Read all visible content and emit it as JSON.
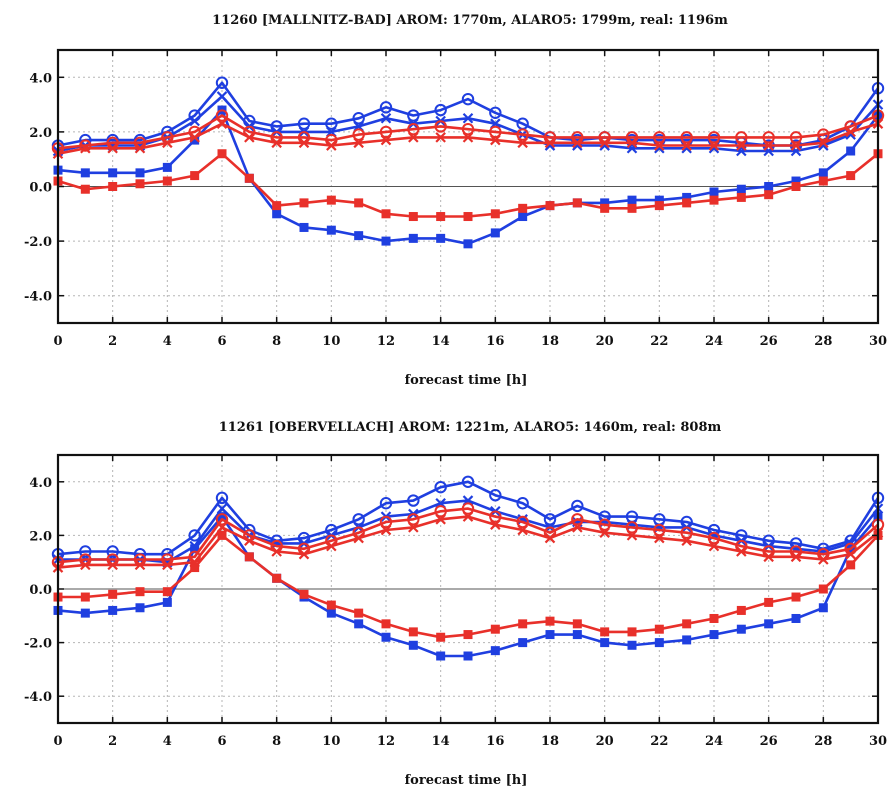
{
  "chart_data": [
    {
      "type": "line",
      "title": "11260 [MALLNITZ-BAD]  AROM: 1770m,  ALARO5: 1799m,  real: 1196m",
      "xlabel": "forecast time [h]",
      "ylabel": "",
      "xlim": [
        0,
        30
      ],
      "ylim": [
        -5,
        5
      ],
      "x_ticks": [
        0,
        2,
        4,
        6,
        8,
        10,
        12,
        14,
        16,
        18,
        20,
        22,
        24,
        26,
        28,
        30
      ],
      "y_ticks": [
        -4,
        -2,
        0,
        2,
        4
      ],
      "y_tick_labels": [
        "-4.0",
        "-2.0",
        "0.0",
        "2.0",
        "4.0"
      ],
      "grid": true,
      "x": [
        0,
        1,
        2,
        3,
        4,
        5,
        6,
        7,
        8,
        9,
        10,
        11,
        12,
        13,
        14,
        15,
        16,
        17,
        18,
        19,
        20,
        21,
        22,
        23,
        24,
        25,
        26,
        27,
        28,
        29,
        30
      ],
      "series": [
        {
          "color": "#1f3fe0",
          "marker": "circle",
          "values": [
            1.5,
            1.7,
            1.7,
            1.7,
            2.0,
            2.6,
            3.8,
            2.4,
            2.2,
            2.3,
            2.3,
            2.5,
            2.9,
            2.6,
            2.8,
            3.2,
            2.7,
            2.3,
            1.8,
            1.7,
            1.8,
            1.7,
            1.7,
            1.7,
            1.7,
            1.6,
            1.5,
            1.5,
            1.7,
            2.2,
            3.6
          ]
        },
        {
          "color": "#1f3fe0",
          "marker": "cross",
          "values": [
            1.3,
            1.5,
            1.5,
            1.5,
            1.8,
            2.4,
            3.3,
            2.2,
            2.0,
            2.0,
            2.0,
            2.2,
            2.5,
            2.3,
            2.4,
            2.5,
            2.3,
            1.9,
            1.5,
            1.5,
            1.5,
            1.4,
            1.4,
            1.4,
            1.4,
            1.3,
            1.3,
            1.3,
            1.5,
            1.9,
            3.0
          ]
        },
        {
          "color": "#1f3fe0",
          "marker": "square",
          "values": [
            0.6,
            0.5,
            0.5,
            0.5,
            0.7,
            1.7,
            2.8,
            0.3,
            -1.0,
            -1.5,
            -1.6,
            -1.8,
            -2.0,
            -1.9,
            -1.9,
            -2.1,
            -1.7,
            -1.1,
            -0.7,
            -0.6,
            -0.6,
            -0.5,
            -0.5,
            -0.4,
            -0.2,
            -0.1,
            0.0,
            0.2,
            0.5,
            1.3,
            2.6
          ]
        },
        {
          "color": "#e8302a",
          "marker": "circle",
          "values": [
            1.4,
            1.5,
            1.6,
            1.6,
            1.8,
            2.0,
            2.6,
            2.0,
            1.8,
            1.8,
            1.7,
            1.9,
            2.0,
            2.1,
            2.2,
            2.1,
            2.0,
            1.9,
            1.8,
            1.8,
            1.8,
            1.8,
            1.8,
            1.8,
            1.8,
            1.8,
            1.8,
            1.8,
            1.9,
            2.2,
            2.6
          ]
        },
        {
          "color": "#e8302a",
          "marker": "cross",
          "values": [
            1.2,
            1.4,
            1.4,
            1.4,
            1.6,
            1.8,
            2.3,
            1.8,
            1.6,
            1.6,
            1.5,
            1.6,
            1.7,
            1.8,
            1.8,
            1.8,
            1.7,
            1.6,
            1.6,
            1.6,
            1.6,
            1.6,
            1.5,
            1.5,
            1.5,
            1.5,
            1.5,
            1.5,
            1.6,
            2.0,
            2.3
          ]
        },
        {
          "color": "#e8302a",
          "marker": "square",
          "values": [
            0.2,
            -0.1,
            0.0,
            0.1,
            0.2,
            0.4,
            1.2,
            0.3,
            -0.7,
            -0.6,
            -0.5,
            -0.6,
            -1.0,
            -1.1,
            -1.1,
            -1.1,
            -1.0,
            -0.8,
            -0.7,
            -0.6,
            -0.8,
            -0.8,
            -0.7,
            -0.6,
            -0.5,
            -0.4,
            -0.3,
            0.0,
            0.2,
            0.4,
            1.2
          ]
        }
      ]
    },
    {
      "type": "line",
      "title": "11261 [OBERVELLACH]  AROM: 1221m,  ALARO5: 1460m,  real: 808m",
      "xlabel": "forecast time [h]",
      "ylabel": "",
      "xlim": [
        0,
        30
      ],
      "ylim": [
        -5,
        5
      ],
      "x_ticks": [
        0,
        2,
        4,
        6,
        8,
        10,
        12,
        14,
        16,
        18,
        20,
        22,
        24,
        26,
        28,
        30
      ],
      "y_ticks": [
        -4,
        -2,
        0,
        2,
        4
      ],
      "y_tick_labels": [
        "-4.0",
        "-2.0",
        "0.0",
        "2.0",
        "4.0"
      ],
      "grid": true,
      "x": [
        0,
        1,
        2,
        3,
        4,
        5,
        6,
        7,
        8,
        9,
        10,
        11,
        12,
        13,
        14,
        15,
        16,
        17,
        18,
        19,
        20,
        21,
        22,
        23,
        24,
        25,
        26,
        27,
        28,
        29,
        30
      ],
      "series": [
        {
          "color": "#1f3fe0",
          "marker": "circle",
          "values": [
            1.3,
            1.4,
            1.4,
            1.3,
            1.3,
            2.0,
            3.4,
            2.2,
            1.8,
            1.9,
            2.2,
            2.6,
            3.2,
            3.3,
            3.8,
            4.0,
            3.5,
            3.2,
            2.6,
            3.1,
            2.7,
            2.7,
            2.6,
            2.5,
            2.2,
            2.0,
            1.8,
            1.7,
            1.5,
            1.8,
            3.4
          ]
        },
        {
          "color": "#1f3fe0",
          "marker": "cross",
          "values": [
            1.1,
            1.1,
            1.1,
            1.1,
            1.0,
            1.6,
            3.0,
            2.0,
            1.7,
            1.7,
            2.0,
            2.3,
            2.7,
            2.8,
            3.2,
            3.3,
            2.9,
            2.6,
            2.3,
            2.5,
            2.5,
            2.4,
            2.3,
            2.3,
            2.0,
            1.8,
            1.6,
            1.5,
            1.4,
            1.7,
            3.0
          ]
        },
        {
          "color": "#1f3fe0",
          "marker": "square",
          "values": [
            -0.8,
            -0.9,
            -0.8,
            -0.7,
            -0.5,
            1.5,
            2.7,
            1.2,
            0.4,
            -0.3,
            -0.9,
            -1.3,
            -1.8,
            -2.1,
            -2.5,
            -2.5,
            -2.3,
            -2.0,
            -1.7,
            -1.7,
            -2.0,
            -2.1,
            -2.0,
            -1.9,
            -1.7,
            -1.5,
            -1.3,
            -1.1,
            -0.7,
            1.5,
            2.7
          ]
        },
        {
          "color": "#e8302a",
          "marker": "circle",
          "values": [
            1.0,
            1.1,
            1.1,
            1.1,
            1.1,
            1.2,
            2.6,
            2.0,
            1.6,
            1.5,
            1.8,
            2.1,
            2.5,
            2.6,
            2.9,
            3.0,
            2.7,
            2.5,
            2.1,
            2.6,
            2.4,
            2.3,
            2.2,
            2.1,
            1.9,
            1.6,
            1.4,
            1.4,
            1.3,
            1.5,
            2.4
          ]
        },
        {
          "color": "#e8302a",
          "marker": "cross",
          "values": [
            0.8,
            0.9,
            0.9,
            0.9,
            0.9,
            1.0,
            2.3,
            1.8,
            1.4,
            1.3,
            1.6,
            1.9,
            2.2,
            2.3,
            2.6,
            2.7,
            2.4,
            2.2,
            1.9,
            2.3,
            2.1,
            2.0,
            1.9,
            1.8,
            1.6,
            1.4,
            1.2,
            1.2,
            1.1,
            1.3,
            2.1
          ]
        },
        {
          "color": "#e8302a",
          "marker": "square",
          "values": [
            -0.3,
            -0.3,
            -0.2,
            -0.1,
            -0.1,
            0.8,
            2.0,
            1.2,
            0.4,
            -0.2,
            -0.6,
            -0.9,
            -1.3,
            -1.6,
            -1.8,
            -1.7,
            -1.5,
            -1.3,
            -1.2,
            -1.3,
            -1.6,
            -1.6,
            -1.5,
            -1.3,
            -1.1,
            -0.8,
            -0.5,
            -0.3,
            0.0,
            0.9,
            2.0
          ]
        }
      ]
    }
  ]
}
